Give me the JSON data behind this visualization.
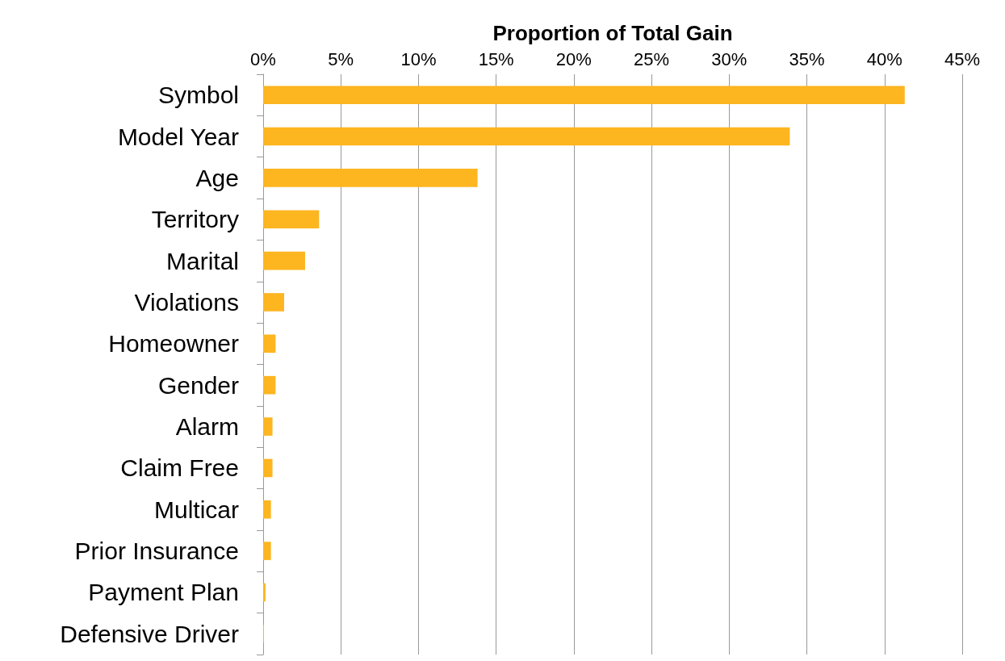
{
  "chart_data": {
    "type": "bar",
    "orientation": "horizontal",
    "xlabel": "Proportion of Total Gain",
    "categories": [
      "Symbol",
      "Model Year",
      "Age",
      "Territory",
      "Marital",
      "Violations",
      "Homeowner",
      "Gender",
      "Alarm",
      "Claim Free",
      "Multicar",
      "Prior Insurance",
      "Payment Plan",
      "Defensive Driver"
    ],
    "values": [
      41.3,
      33.9,
      13.8,
      3.6,
      2.7,
      1.35,
      0.8,
      0.8,
      0.6,
      0.6,
      0.5,
      0.5,
      0.15,
      0.05
    ],
    "color": "#fdb520",
    "xlim": [
      0,
      45
    ],
    "xticks": [
      {
        "value": 0,
        "label": "0%"
      },
      {
        "value": 5,
        "label": "5%"
      },
      {
        "value": 10,
        "label": "10%"
      },
      {
        "value": 15,
        "label": "15%"
      },
      {
        "value": 20,
        "label": "20%"
      },
      {
        "value": 25,
        "label": "25%"
      },
      {
        "value": 30,
        "label": "30%"
      },
      {
        "value": 35,
        "label": "35%"
      },
      {
        "value": 40,
        "label": "40%"
      },
      {
        "value": 45,
        "label": "45%"
      }
    ],
    "grid": "x"
  }
}
